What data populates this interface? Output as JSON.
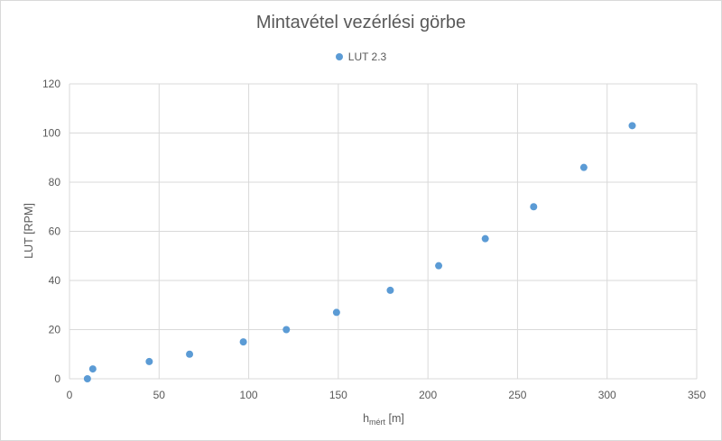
{
  "chart_data": {
    "type": "scatter",
    "title": "Mintavétel vezérlési görbe",
    "xlabel": {
      "main": "h",
      "sub": "mért",
      "unit": " [m]"
    },
    "ylabel": "LUT [RPM]",
    "xlim": [
      0,
      350
    ],
    "ylim": [
      0,
      120
    ],
    "x_ticks": [
      0,
      50,
      100,
      150,
      200,
      250,
      300,
      350
    ],
    "y_ticks": [
      0,
      20,
      40,
      60,
      80,
      100,
      120
    ],
    "grid": true,
    "legend_position": "top",
    "series": [
      {
        "name": "LUT 2.3",
        "color": "#5b9bd5",
        "points": [
          {
            "x": 10,
            "y": 0
          },
          {
            "x": 13,
            "y": 4
          },
          {
            "x": 44.5,
            "y": 7
          },
          {
            "x": 67,
            "y": 10
          },
          {
            "x": 97,
            "y": 15
          },
          {
            "x": 121,
            "y": 20
          },
          {
            "x": 149,
            "y": 27
          },
          {
            "x": 179,
            "y": 36
          },
          {
            "x": 206,
            "y": 46
          },
          {
            "x": 232,
            "y": 57
          },
          {
            "x": 259,
            "y": 70
          },
          {
            "x": 287,
            "y": 86
          },
          {
            "x": 314,
            "y": 103
          }
        ]
      }
    ]
  }
}
